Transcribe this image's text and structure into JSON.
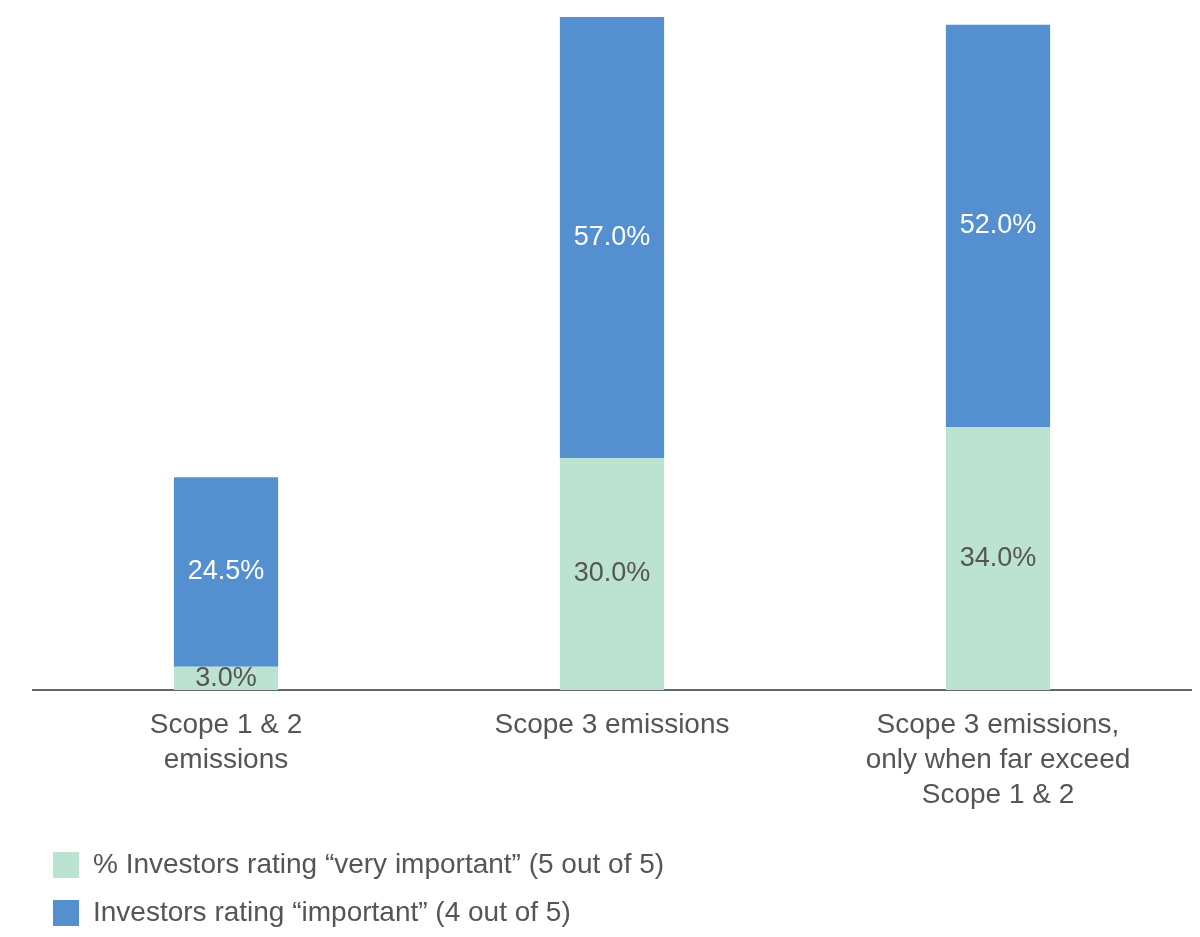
{
  "chart_data": {
    "type": "bar",
    "stacked": true,
    "categories": [
      "Scope 1 & 2 emissions",
      "Scope 3 emissions",
      "Scope 3 emissions, only when far exceed Scope 1 & 2"
    ],
    "series": [
      {
        "name": "% Investors rating “very important” (5 out of 5)",
        "color": "#bce2d1",
        "values": [
          3.0,
          30.0,
          34.0
        ],
        "value_labels": [
          "3.0%",
          "30.0%",
          "34.0%"
        ]
      },
      {
        "name": "Investors rating “important” (4 out of 5)",
        "color": "#5490d0",
        "values": [
          24.5,
          57.0,
          52.0
        ],
        "value_labels": [
          "24.5%",
          "57.0%",
          "52.0%"
        ]
      }
    ],
    "legend": "bottom left",
    "tick_labels": "x",
    "grid": false
  }
}
